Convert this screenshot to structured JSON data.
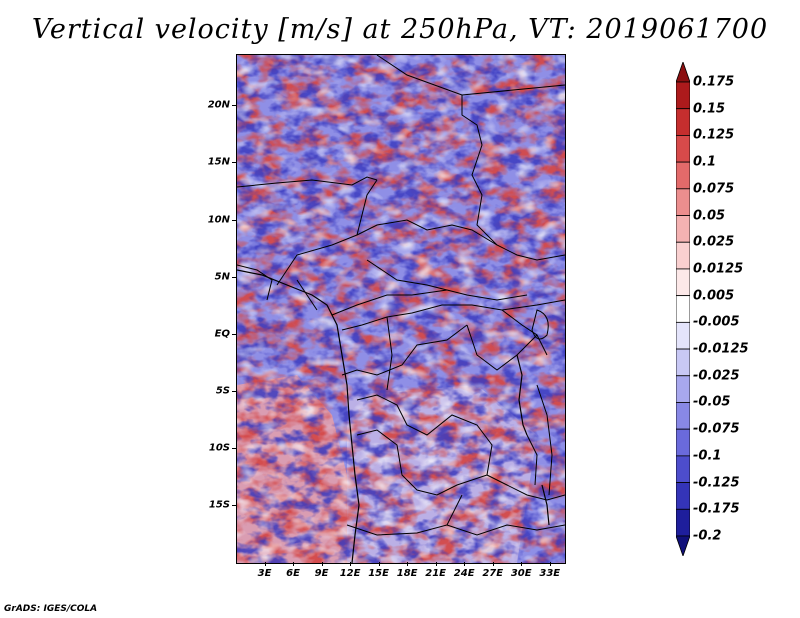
{
  "title": "Vertical velocity [m/s] at 250hPa, VT: 2019061700",
  "footer": "GrADS: IGES/COLA",
  "map": {
    "lat_range": [
      -20,
      24.5
    ],
    "lon_range": [
      0,
      34.5
    ],
    "lat_labels": [
      {
        "lat": 20,
        "text": "20N"
      },
      {
        "lat": 15,
        "text": "15N"
      },
      {
        "lat": 10,
        "text": "10N"
      },
      {
        "lat": 5,
        "text": "5N"
      },
      {
        "lat": 0,
        "text": "EQ"
      },
      {
        "lat": -5,
        "text": "5S"
      },
      {
        "lat": -10,
        "text": "10S"
      },
      {
        "lat": -15,
        "text": "15S"
      }
    ],
    "lon_labels": [
      {
        "lon": 3,
        "text": "3E"
      },
      {
        "lon": 6,
        "text": "6E"
      },
      {
        "lon": 9,
        "text": "9E"
      },
      {
        "lon": 12,
        "text": "12E"
      },
      {
        "lon": 15,
        "text": "15E"
      },
      {
        "lon": 18,
        "text": "18E"
      },
      {
        "lon": 21,
        "text": "21E"
      },
      {
        "lon": 24,
        "text": "24E"
      },
      {
        "lon": 27,
        "text": "27E"
      },
      {
        "lon": 30,
        "text": "30E"
      },
      {
        "lon": 33,
        "text": "33E"
      }
    ]
  },
  "colorbar": {
    "labels": [
      "0.175",
      "0.15",
      "0.125",
      "0.1",
      "0.075",
      "0.05",
      "0.025",
      "0.0125",
      "0.005",
      "-0.005",
      "-0.0125",
      "-0.025",
      "-0.05",
      "-0.075",
      "-0.1",
      "-0.125",
      "-0.175",
      "-0.2"
    ],
    "colors": [
      "#8b0f10",
      "#ad1a1c",
      "#c52e2e",
      "#d74a4a",
      "#e36a6a",
      "#ec8e8e",
      "#f4b2b2",
      "#f9d0d0",
      "#fce8e8",
      "#ffffff",
      "#e4e4fb",
      "#c8c8f5",
      "#a8a8ee",
      "#8888e6",
      "#6a6adc",
      "#4d4dcc",
      "#3434b8",
      "#1e1e9c",
      "#10107a"
    ]
  }
}
